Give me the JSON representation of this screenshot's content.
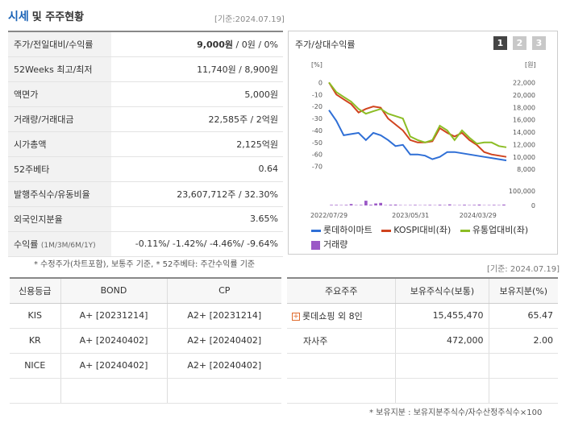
{
  "header": {
    "title_main": "시세",
    "title_sub": "및 주주현황",
    "date": "[기준:2024.07.19]"
  },
  "quote": {
    "price_label": "주가/전일대비/수익률",
    "price_value": "9,000원",
    "price_rest": " / 0원 / 0%",
    "w52_label": "52Weeks 최고/최저",
    "w52_value": "11,740원 / 8,900원",
    "par_label": "액면가",
    "par_value": "5,000원",
    "volume_label": "거래량/거래대금",
    "volume_value": "22,585주 / 2억원",
    "mcap_label": "시가총액",
    "mcap_value": "2,125억원",
    "beta_label": "52주베타",
    "beta_value": "0.64",
    "shares_label": "발행주식수/유동비율",
    "shares_value": "23,607,712주 / 32.30%",
    "foreign_label": "외국인지분율",
    "foreign_value": "3.65%",
    "return_label": "수익률",
    "return_period": "(1M/3M/6M/1Y)",
    "return_value": "-0.11%/ -1.42%/ -4.46%/ -9.64%"
  },
  "note_chart": "* 수정주가(차트포함), 보통주 기준, * 52주베타: 주간수익률 기준",
  "note_date2": "[기준: 2024.07.19]",
  "chart_panel": {
    "title": "주가/상대수익률",
    "pages": [
      "1",
      "2",
      "3"
    ]
  },
  "chart_data": {
    "type": "line",
    "x_labels": [
      "2022/07/29",
      "2023/05/31",
      "2024/03/29"
    ],
    "left_axis": {
      "unit": "[%]",
      "ticks": [
        0,
        -10,
        -20,
        -30,
        -40,
        -50,
        -60,
        -70
      ],
      "range": [
        -75,
        5
      ]
    },
    "right_axis": {
      "unit": "[원]",
      "ticks": [
        22000,
        20000,
        18000,
        16000,
        14000,
        12000,
        10000,
        8000
      ],
      "range": [
        7500,
        23000
      ]
    },
    "volume_axis": {
      "ticks": [
        100000,
        0
      ],
      "range": [
        0,
        100000
      ]
    },
    "series": [
      {
        "name": "롯데하이마트",
        "color": "#2f6fd6",
        "values": [
          -23,
          -32,
          -44,
          -43,
          -42,
          -48,
          -42,
          -44,
          -48,
          -53,
          -52,
          -60,
          -60,
          -61,
          -64,
          -62,
          -58,
          -58,
          -59,
          -60,
          -61,
          -62,
          -63,
          -64,
          -65
        ]
      },
      {
        "name": "KOSPI대비(좌)",
        "color": "#d0431e",
        "values": [
          0,
          -10,
          -14,
          -18,
          -25,
          -22,
          -20,
          -21,
          -30,
          -35,
          -40,
          -48,
          -50,
          -50,
          -49,
          -38,
          -42,
          -45,
          -42,
          -48,
          -52,
          -58,
          -60,
          -61,
          -62
        ]
      },
      {
        "name": "유통업대비(좌)",
        "color": "#8cbd25",
        "values": [
          0,
          -8,
          -12,
          -16,
          -22,
          -26,
          -24,
          -22,
          -26,
          -28,
          -30,
          -45,
          -48,
          -50,
          -48,
          -36,
          -40,
          -48,
          -40,
          -46,
          -51,
          -50,
          -50,
          -53,
          -54
        ]
      }
    ],
    "volume": {
      "name": "거래량",
      "color": "#9b59c6",
      "values": [
        4,
        4,
        3,
        4,
        10,
        3,
        4,
        33,
        5,
        14,
        18,
        3,
        5,
        6,
        3,
        2,
        3,
        4,
        2,
        3,
        4,
        2,
        5,
        3,
        7,
        2,
        3,
        5,
        3,
        4,
        6,
        2,
        3,
        4,
        3,
        6
      ]
    }
  },
  "credit": {
    "headers": [
      "신용등급",
      "BOND",
      "CP"
    ],
    "rows": [
      [
        "KIS",
        "A+ [20231214]",
        "A2+ [20231214]"
      ],
      [
        "KR",
        "A+ [20240402]",
        "A2+ [20240402]"
      ],
      [
        "NICE",
        "A+ [20240402]",
        "A2+ [20240402]"
      ]
    ]
  },
  "holders": {
    "headers": [
      "주요주주",
      "보유주식수(보통)",
      "보유지분(%)"
    ],
    "rows": [
      [
        "롯데쇼핑 외 8인",
        "15,455,470",
        "65.47"
      ],
      [
        "자사주",
        "472,000",
        "2.00"
      ]
    ],
    "expand_symbol": "+"
  },
  "note_holders": "* 보유지분 : 보유지분주식수/자수산정주식수×100"
}
